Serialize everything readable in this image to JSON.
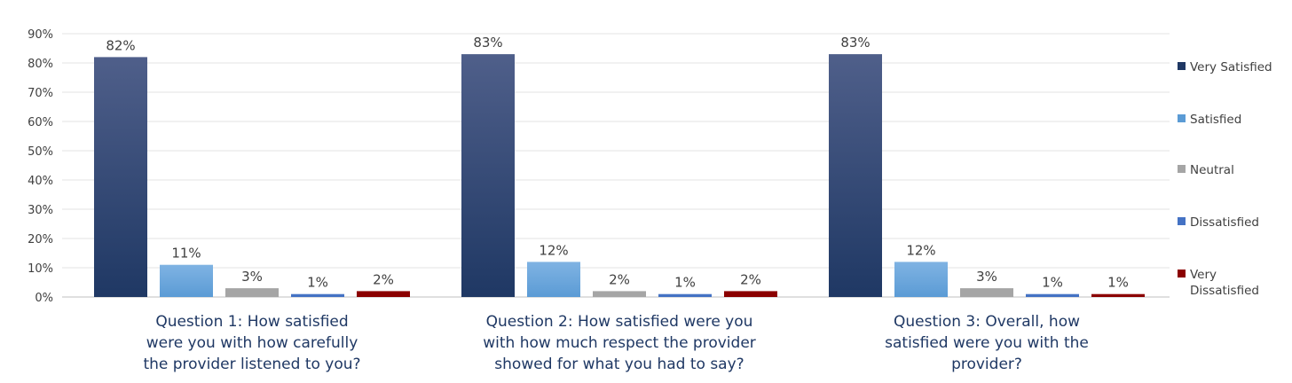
{
  "chart_data": {
    "type": "bar",
    "categories": [
      [
        "Question 1: How satisfied",
        "were you with how carefully",
        "the provider listened to you?"
      ],
      [
        "Question 2: How satisfied were you",
        "with how much respect the provider",
        "showed for what you had to say?"
      ],
      [
        "Question 3: Overall, how",
        "satisfied were you with the",
        "provider?"
      ]
    ],
    "series": [
      {
        "name": "Very Satisfied",
        "values": [
          82,
          83,
          83
        ],
        "labels": [
          "82%",
          "83%",
          "83%"
        ],
        "color": "#1f3864",
        "color_top": "#4f5f8a"
      },
      {
        "name": "Satisfied",
        "values": [
          11,
          12,
          12
        ],
        "labels": [
          "11%",
          "12%",
          "12%"
        ],
        "color": "#5b9bd5",
        "color_top": "#7fb3e3"
      },
      {
        "name": "Neutral",
        "values": [
          3,
          2,
          3
        ],
        "labels": [
          "3%",
          "2%",
          "3%"
        ],
        "color": "#a5a5a5",
        "color_top": "#a5a5a5"
      },
      {
        "name": "Dissatisfied",
        "values": [
          1,
          1,
          1
        ],
        "labels": [
          "1%",
          "1%",
          "1%"
        ],
        "color": "#4472c4",
        "color_top": "#4472c4"
      },
      {
        "name": "Very Dissatisfied",
        "values": [
          2,
          2,
          1
        ],
        "labels": [
          "2%",
          "2%",
          "1%"
        ],
        "color": "#8b0000",
        "color_top": "#8b0000"
      }
    ],
    "legend": [
      {
        "name": "Very Satisfied",
        "lines": [
          "Very Satisfied"
        ]
      },
      {
        "name": "Satisfied",
        "lines": [
          "Satisfied"
        ]
      },
      {
        "name": "Neutral",
        "lines": [
          "Neutral"
        ]
      },
      {
        "name": "Dissatisfied",
        "lines": [
          "Dissatisfied"
        ]
      },
      {
        "name": "Very Dissatisfied",
        "lines": [
          "Very",
          "Dissatisfied"
        ]
      }
    ],
    "yticks": [
      "0%",
      "10%",
      "20%",
      "30%",
      "40%",
      "50%",
      "60%",
      "70%",
      "80%",
      "90%"
    ],
    "ylim": [
      0,
      90
    ],
    "grid": true,
    "legend_position": "right",
    "title": "",
    "xlabel": "",
    "ylabel": ""
  }
}
